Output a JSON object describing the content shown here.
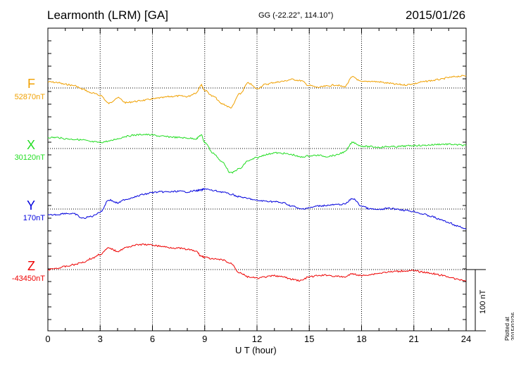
{
  "header": {
    "title": "Learmonth (LRM)  [GA]",
    "coords": "GG (-22.22°, 114.10°)",
    "date": "2015/01/26"
  },
  "side": {
    "scale_label": "100 nT",
    "plotted": "Plotted at 2015/02/26 01:31  UT"
  },
  "chart_data": {
    "type": "line",
    "title": "Learmonth (LRM)  [GA]",
    "xlabel": "U T (hour)",
    "ylabel": "",
    "xlim": [
      0,
      24
    ],
    "x_ticks": [
      0,
      3,
      6,
      9,
      12,
      15,
      18,
      21,
      24
    ],
    "grid": true,
    "y_units": "nT offset from baseline",
    "scale_bar_nT": 100,
    "x": [
      0,
      0.5,
      1,
      1.5,
      2,
      2.5,
      3,
      3.5,
      4,
      4.5,
      5,
      5.5,
      6,
      6.5,
      7,
      7.5,
      8,
      8.5,
      8.8,
      9,
      9.5,
      10,
      10.5,
      11,
      11.5,
      12,
      12.5,
      13,
      13.5,
      14,
      14.5,
      15,
      15.5,
      16,
      16.5,
      17,
      17.5,
      18,
      18.5,
      19,
      19.5,
      20,
      20.5,
      21,
      21.5,
      22,
      22.5,
      23,
      23.5,
      24
    ],
    "series": [
      {
        "name": "F",
        "baseline_label": "52870nT",
        "color": "#f0a000",
        "values": [
          10,
          9,
          6,
          4,
          -2,
          -8,
          -12,
          -25,
          -16,
          -24,
          -22,
          -20,
          -18,
          -16,
          -14,
          -13,
          -14,
          -8,
          5,
          -4,
          -14,
          -26,
          -32,
          -10,
          8,
          -1,
          6,
          9,
          11,
          14,
          12,
          4,
          1,
          3,
          5,
          2,
          18,
          10,
          11,
          10,
          8,
          6,
          5,
          7,
          10,
          12,
          14,
          17,
          19,
          20
        ]
      },
      {
        "name": "X",
        "baseline_label": "30120nT",
        "color": "#22dd22",
        "values": [
          18,
          18,
          16,
          15,
          14,
          11,
          10,
          12,
          16,
          20,
          22,
          23,
          22,
          20,
          19,
          18,
          17,
          16,
          22,
          10,
          -8,
          -22,
          -40,
          -33,
          -20,
          -15,
          -10,
          -7,
          -8,
          -10,
          -14,
          -12,
          -11,
          -13,
          -11,
          -6,
          10,
          4,
          3,
          2,
          3,
          3,
          4,
          5,
          5,
          6,
          7,
          7,
          6,
          5
        ]
      },
      {
        "name": "Y",
        "baseline_label": "170nT",
        "color": "#0000dd",
        "values": [
          -10,
          -9,
          -7,
          -8,
          -15,
          -12,
          -5,
          15,
          10,
          16,
          20,
          24,
          27,
          28,
          28,
          29,
          28,
          30,
          31,
          33,
          30,
          28,
          24,
          20,
          17,
          14,
          13,
          12,
          10,
          5,
          0,
          2,
          5,
          6,
          7,
          8,
          17,
          5,
          0,
          -1,
          1,
          0,
          -2,
          -4,
          -8,
          -12,
          -17,
          -22,
          -28,
          -33
        ]
      },
      {
        "name": "Z",
        "baseline_label": "-43450nT",
        "color": "#ee0000",
        "values": [
          0,
          2,
          5,
          8,
          12,
          18,
          25,
          35,
          30,
          36,
          40,
          41,
          40,
          38,
          36,
          35,
          33,
          30,
          22,
          20,
          17,
          16,
          10,
          -5,
          -12,
          -14,
          -12,
          -10,
          -12,
          -16,
          -18,
          -12,
          -10,
          -9,
          -11,
          -12,
          -7,
          -10,
          -8,
          -6,
          -4,
          -3,
          -2,
          -2,
          -4,
          -6,
          -9,
          -12,
          -16,
          -18
        ]
      }
    ]
  }
}
